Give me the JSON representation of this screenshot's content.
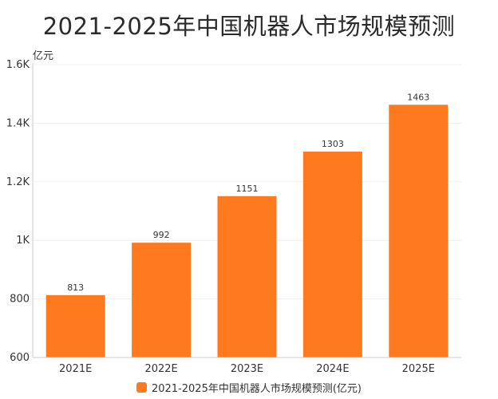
{
  "title": "2021-2025年中国机器人市场规模预测",
  "colors": {
    "bar": "#FF7A1F",
    "axis": "#cccccc",
    "grid": "#efefef"
  },
  "chart_data": {
    "type": "bar",
    "title": "2021-2025年中国机器人市场规模预测",
    "ylabel": "亿元",
    "xlabel": "",
    "categories": [
      "2021E",
      "2022E",
      "2023E",
      "2024E",
      "2025E"
    ],
    "series": [
      {
        "name": "2021-2025年中国机器人市场规模预测(亿元)",
        "values": [
          813,
          992,
          1151,
          1303,
          1463
        ]
      }
    ],
    "ylim": [
      600,
      1600
    ],
    "yticks": [
      {
        "value": 600,
        "label": "600"
      },
      {
        "value": 800,
        "label": "800"
      },
      {
        "value": 1000,
        "label": "1K"
      },
      {
        "value": 1200,
        "label": "1.2K"
      },
      {
        "value": 1400,
        "label": "1.4K"
      },
      {
        "value": 1600,
        "label": "1.6K"
      }
    ],
    "grid": true,
    "legend_position": "bottom"
  }
}
